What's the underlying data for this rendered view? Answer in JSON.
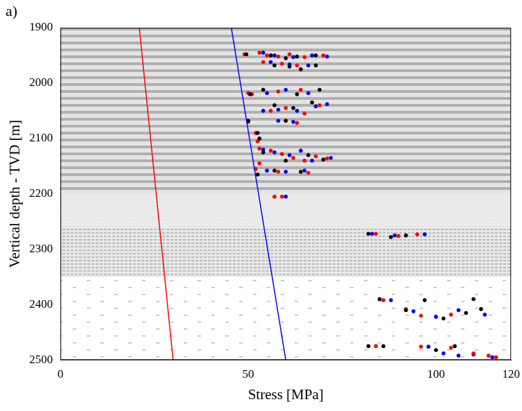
{
  "chart_data": {
    "type": "scatter",
    "panel": "a)",
    "x_label": "Stress [MPa]",
    "y_label": "Vertical depth - TVD [m]",
    "xlim": [
      0,
      120
    ],
    "xticks": [
      0,
      50,
      100,
      120
    ],
    "ylim": [
      2500,
      1900
    ],
    "yticks": [
      1900,
      2000,
      2100,
      2200,
      2300,
      2400,
      2500
    ],
    "grid": false,
    "layers": [
      [
        1900,
        2200
      ],
      [
        2200,
        2260
      ],
      [
        2260,
        2350
      ],
      [
        2350,
        2500
      ]
    ],
    "series": [
      {
        "type": "line",
        "color": "#ff0000",
        "x": [
          21,
          30
        ],
        "values": [
          1900,
          2500
        ]
      },
      {
        "type": "line",
        "color": "#0000ff",
        "x": [
          45.5,
          60
        ],
        "values": [
          1900,
          2500
        ]
      },
      {
        "type": "scatter",
        "color": "#000000",
        "marker": "circle",
        "x": [
          49.5,
          56,
          60,
          63,
          68,
          57,
          61,
          64,
          68,
          54,
          63,
          69,
          50.5,
          57,
          62,
          67,
          50,
          60,
          52.5,
          53,
          54,
          60,
          66,
          70,
          57,
          64,
          52.5,
          82,
          88,
          92,
          85,
          97,
          92,
          102,
          108,
          110,
          82,
          86,
          100,
          105,
          112
        ],
        "values": [
          1948,
          1950,
          1955,
          1952,
          1950,
          1968,
          1970,
          1975,
          1968,
          2012,
          2020,
          2012,
          2020,
          2040,
          2045,
          2035,
          2068,
          2068,
          2090,
          2100,
          2125,
          2140,
          2130,
          2138,
          2158,
          2160,
          2165,
          2272,
          2278,
          2275,
          2390,
          2392,
          2410,
          2425,
          2415,
          2390,
          2475,
          2475,
          2482,
          2475,
          2408
        ]
      },
      {
        "type": "scatter",
        "color": "#ff0000",
        "marker": "circle",
        "x": [
          49,
          53,
          55,
          58,
          61,
          65,
          70,
          54,
          59,
          63,
          50,
          51,
          58,
          64,
          56,
          60,
          65,
          69,
          50,
          63,
          52,
          52.5,
          53,
          56,
          59,
          62,
          65,
          68,
          71,
          53,
          52,
          58,
          66,
          57,
          59,
          84,
          90,
          95,
          86,
          92,
          96,
          104,
          84,
          96,
          104,
          110,
          114,
          116
        ],
        "values": [
          1948,
          1945,
          1950,
          1952,
          1948,
          1953,
          1950,
          1962,
          1965,
          1968,
          2018,
          2020,
          2015,
          2012,
          2050,
          2045,
          2055,
          2040,
          2070,
          2072,
          2090,
          2105,
          2118,
          2122,
          2128,
          2135,
          2140,
          2132,
          2136,
          2145,
          2155,
          2160,
          2162,
          2205,
          2205,
          2272,
          2276,
          2273,
          2392,
          2408,
          2420,
          2418,
          2475,
          2476,
          2478,
          2488,
          2492,
          2495
        ]
      },
      {
        "type": "scatter",
        "color": "#0000ff",
        "marker": "circle",
        "x": [
          54,
          57,
          62,
          67,
          71,
          56,
          61,
          66,
          55,
          60,
          66,
          54,
          58,
          63,
          68,
          71,
          58,
          62,
          54,
          57,
          61,
          64,
          67,
          72,
          55,
          60,
          65,
          60,
          83,
          89,
          97,
          88,
          94,
          100,
          106,
          113,
          98,
          102,
          106,
          110,
          115
        ],
        "values": [
          1945,
          1950,
          1953,
          1950,
          1952,
          1962,
          1966,
          1968,
          2018,
          2012,
          2018,
          2050,
          2048,
          2050,
          2042,
          2038,
          2068,
          2070,
          2120,
          2125,
          2130,
          2122,
          2140,
          2135,
          2158,
          2160,
          2158,
          2205,
          2272,
          2275,
          2273,
          2392,
          2412,
          2422,
          2410,
          2418,
          2476,
          2488,
          2492,
          2490,
          2495
        ]
      }
    ]
  }
}
